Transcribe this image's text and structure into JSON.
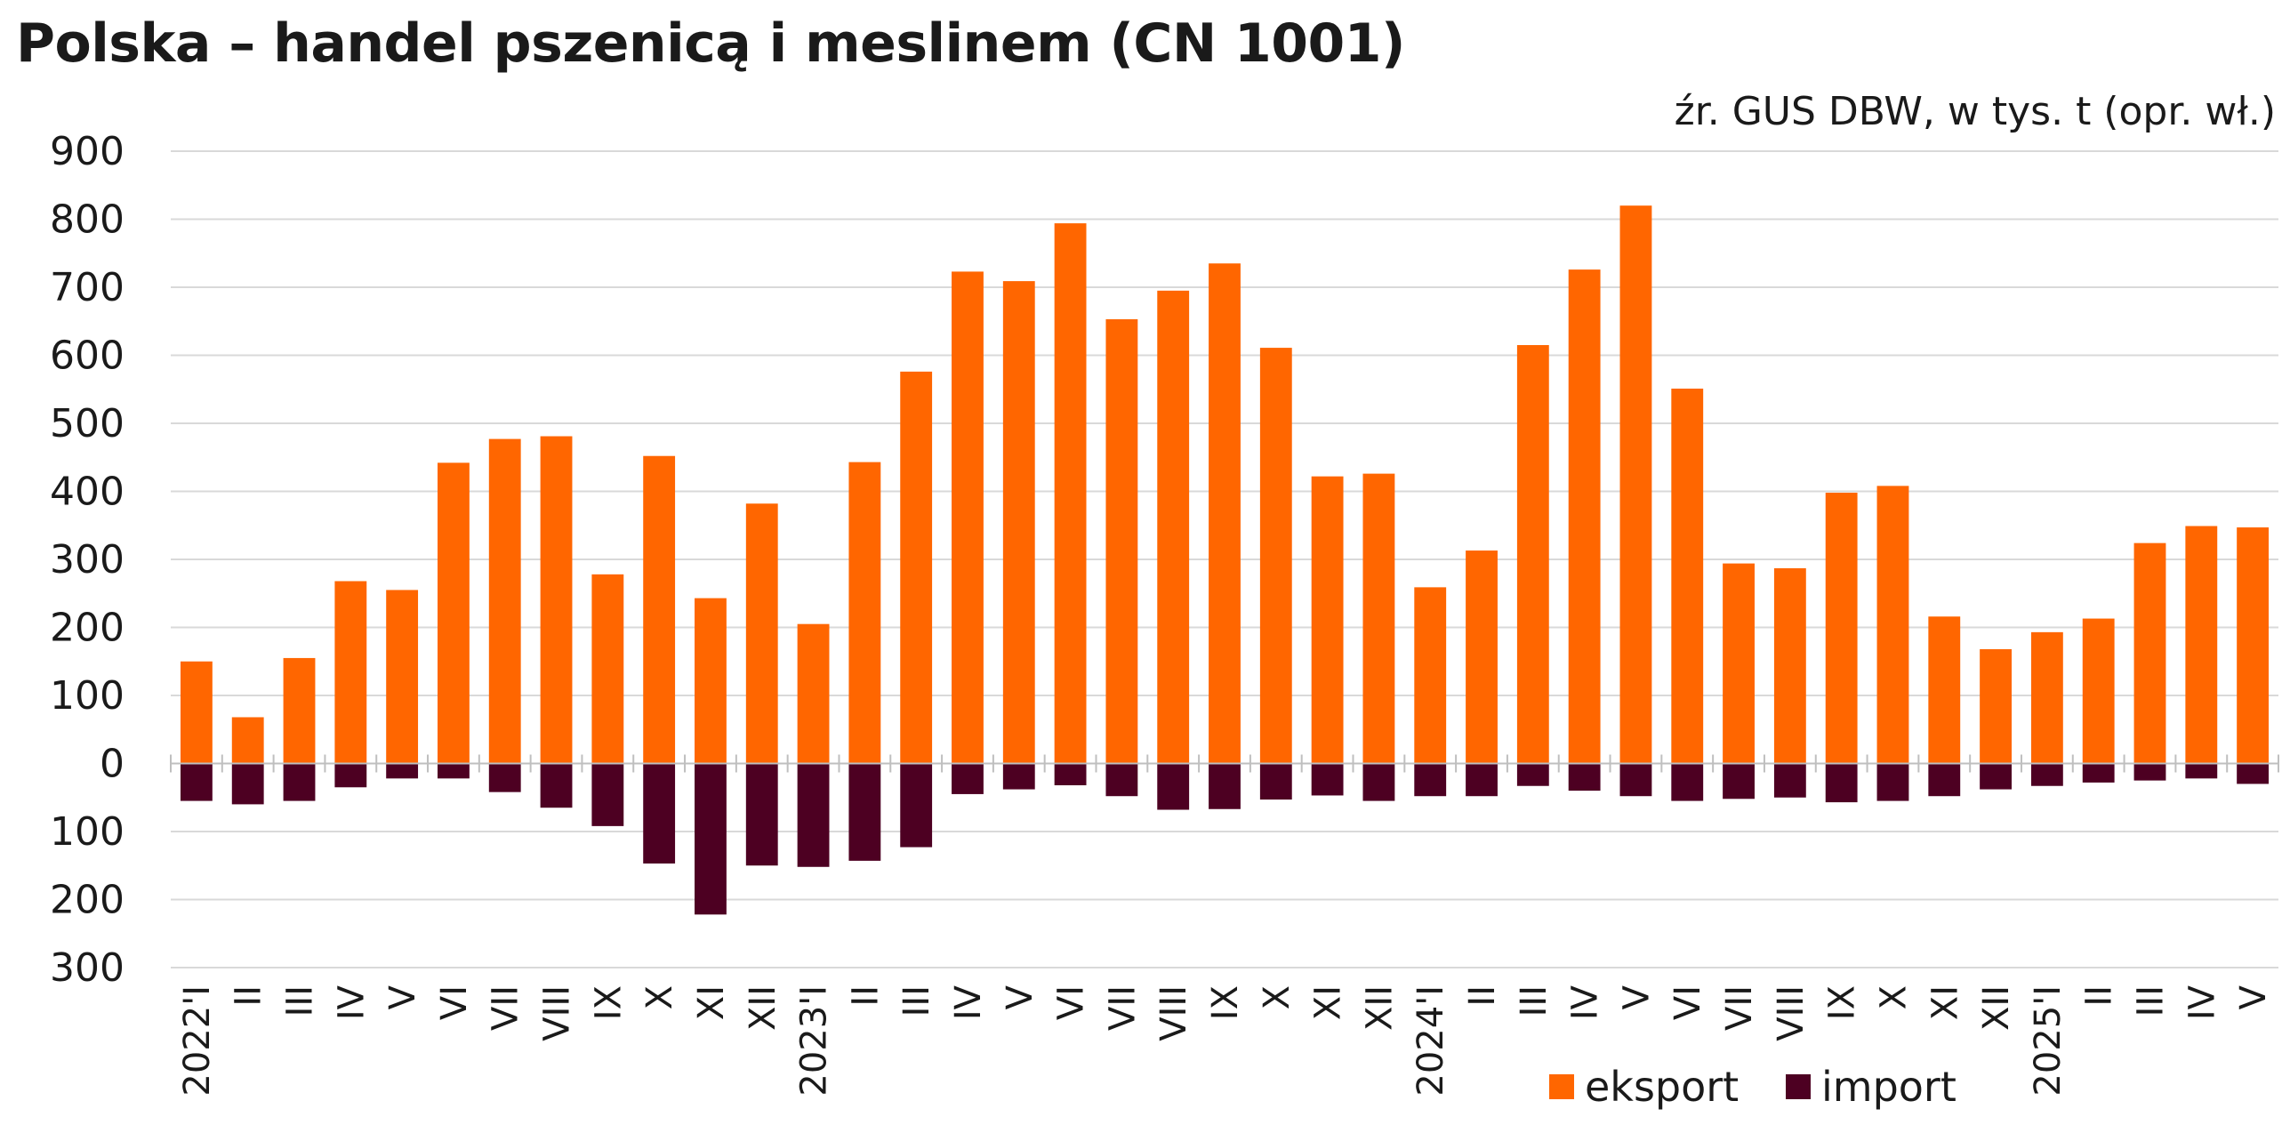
{
  "title": "Polska – handel pszenicą i meslinem (CN 1001)",
  "source": "źr. GUS DBW, w tys. t (opr. wł.)",
  "chart_data": {
    "type": "bar",
    "stacked": true,
    "ylim": [
      -300,
      900
    ],
    "y_ticks": [
      -300,
      -200,
      -100,
      0,
      100,
      200,
      300,
      400,
      500,
      600,
      700,
      800,
      900
    ],
    "y_tick_labels": [
      "300",
      "200",
      "100",
      "0",
      "100",
      "200",
      "300",
      "400",
      "500",
      "600",
      "700",
      "800",
      "900"
    ],
    "grid": true,
    "legend": "bottom-right",
    "categories": [
      "2022'I",
      "II",
      "III",
      "IV",
      "V",
      "VI",
      "VII",
      "VIII",
      "IX",
      "X",
      "XI",
      "XII",
      "2023'I",
      "II",
      "III",
      "IV",
      "V",
      "VI",
      "VII",
      "VIII",
      "IX",
      "X",
      "XI",
      "XII",
      "2024'I",
      "II",
      "III",
      "IV",
      "V",
      "VI",
      "VII",
      "VIII",
      "IX",
      "X",
      "XI",
      "XII",
      "2025'I",
      "II",
      "III",
      "IV",
      "V"
    ],
    "series": [
      {
        "name": "eksport",
        "color": "#ff6600",
        "values": [
          150,
          68,
          155,
          268,
          255,
          442,
          477,
          481,
          278,
          452,
          243,
          382,
          205,
          443,
          576,
          723,
          709,
          794,
          653,
          695,
          735,
          611,
          422,
          426,
          259,
          313,
          615,
          726,
          820,
          551,
          294,
          287,
          398,
          408,
          216,
          168,
          193,
          213,
          324,
          349,
          347
        ]
      },
      {
        "name": "import",
        "color": "#4d0022",
        "values": [
          -55,
          -60,
          -55,
          -35,
          -22,
          -22,
          -42,
          -65,
          -92,
          -147,
          -222,
          -150,
          -152,
          -143,
          -123,
          -45,
          -38,
          -32,
          -48,
          -68,
          -67,
          -53,
          -47,
          -55,
          -48,
          -48,
          -33,
          -40,
          -48,
          -55,
          -52,
          -50,
          -57,
          -55,
          -48,
          -38,
          -33,
          -28,
          -25,
          -22,
          -30
        ]
      }
    ]
  }
}
